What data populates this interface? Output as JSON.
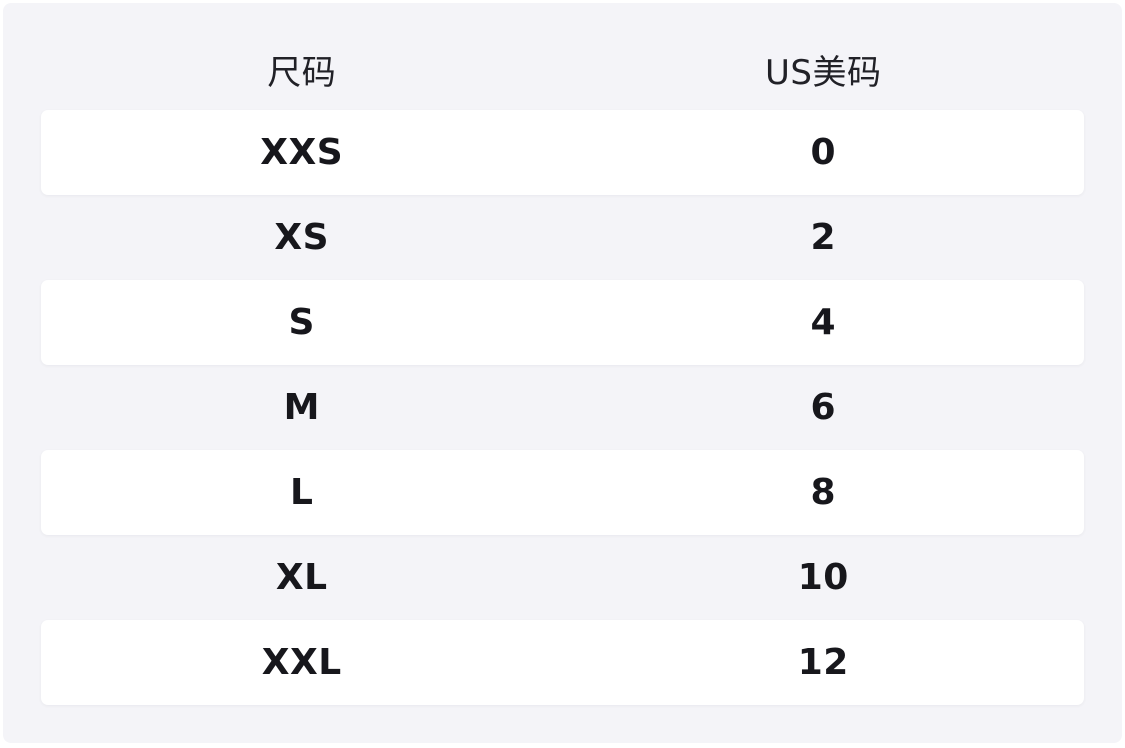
{
  "colors": {
    "page_bg": "#ffffff",
    "panel_bg": "#f4f4f8",
    "row_bg": "#ffffff",
    "row_text": "#17171c",
    "header_text": "#212127"
  },
  "size_chart": {
    "columns": [
      {
        "key": "size",
        "label": "尺码"
      },
      {
        "key": "us",
        "label": "US美码"
      }
    ],
    "rows": [
      {
        "size": "XXS",
        "us": "0"
      },
      {
        "size": "XS",
        "us": "2"
      },
      {
        "size": "S",
        "us": "4"
      },
      {
        "size": "M",
        "us": "6"
      },
      {
        "size": "L",
        "us": "8"
      },
      {
        "size": "XL",
        "us": "10"
      },
      {
        "size": "XXL",
        "us": "12"
      }
    ]
  }
}
